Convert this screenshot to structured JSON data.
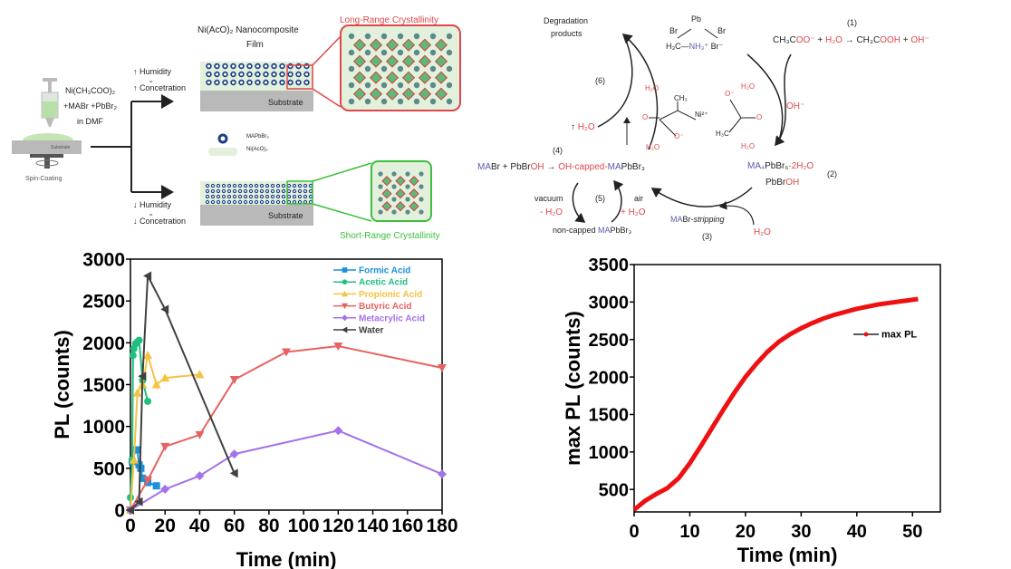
{
  "colors": {
    "red": "#e0464a",
    "blue": "#5a5aa8",
    "green": "#3cbf3c",
    "pale_green": "#e3f1dc",
    "substrate": "#b9b9b9",
    "black": "#222222"
  },
  "process_diagram": {
    "precursor": [
      "Ni(CH₃COO)₂",
      "+MABr +PbBr₂",
      "in DMF"
    ],
    "substrate_small": "Substrate",
    "spin_coating": "Spin-Coating",
    "high_condition": {
      "line1": "↑ Humidity",
      "or": "or",
      "line2": "↑ Concetration"
    },
    "low_condition": {
      "line1": "↓ Humidity",
      "or": "or",
      "line2": "↓ Concetration"
    },
    "film_title": [
      "Ni(AcO)₂ Nanocomposite",
      "Film"
    ],
    "substrate_label": "Substrate",
    "long_range": "Long-Range Crystallinity",
    "short_range": "Short-Range Crystallinity",
    "legend": {
      "crystal": "MAPbBr₃",
      "matrix": "Ni(AcO)₂"
    }
  },
  "reaction_scheme": {
    "degradation": [
      "Degradation",
      "products"
    ],
    "pb": "Pb",
    "br_left": "Br",
    "br_right": "Br",
    "ma_salt": [
      {
        "t": "H₃C—",
        "c": "black"
      },
      {
        "t": "NH₃⁺",
        "c": "blue"
      },
      {
        "t": " Br⁻",
        "c": "black"
      }
    ],
    "step1_label": "(1)",
    "step1": [
      {
        "t": "CH₃C",
        "c": "black"
      },
      {
        "t": "OO⁻",
        "c": "red"
      },
      {
        "t": " + ",
        "c": "black"
      },
      {
        "t": "H₂O",
        "c": "red"
      },
      {
        "t": " → CH₃C",
        "c": "black"
      },
      {
        "t": "OOH",
        "c": "red"
      },
      {
        "t": " + ",
        "c": "black"
      },
      {
        "t": "OH⁻",
        "c": "red"
      }
    ],
    "oh_minus": "OH⁻",
    "step6_label": "(6)",
    "up_h2o": [
      {
        "t": "↑ ",
        "c": "black"
      },
      {
        "t": "H₂O",
        "c": "red"
      }
    ],
    "complex": {
      "h2o": "H₂O",
      "ch3": "CH₃",
      "h3c": "H₃C",
      "o": "O",
      "o_minus": "O⁻",
      "ni": "Ni²⁺"
    },
    "step4_label": "(4)",
    "step4": [
      {
        "t": "MA",
        "c": "blue"
      },
      {
        "t": "Br + PbBr",
        "c": "black"
      },
      {
        "t": "OH",
        "c": "red"
      },
      {
        "t": " → ",
        "c": "black"
      },
      {
        "t": "OH-capped-",
        "c": "red"
      },
      {
        "t": "MA",
        "c": "blue"
      },
      {
        "t": "PbBr₃",
        "c": "black"
      }
    ],
    "step2_a": [
      {
        "t": "MA₄",
        "c": "blue"
      },
      {
        "t": "PbBr₆·",
        "c": "black"
      },
      {
        "t": "2H₂O",
        "c": "red"
      }
    ],
    "step2_b": [
      {
        "t": "PbBr",
        "c": "black"
      },
      {
        "t": "OH",
        "c": "red"
      }
    ],
    "step2_label": "(2)",
    "vacuum": "vacuum",
    "minus_h2o": "- H₂O",
    "step5_label": "(5)",
    "air": "air",
    "plus_h2o": "+ H₂O",
    "non_capped": [
      {
        "t": "non-capped ",
        "c": "black"
      },
      {
        "t": "MA",
        "c": "blue"
      },
      {
        "t": "PbBr₃",
        "c": "black"
      }
    ],
    "stripping": [
      {
        "t": "MA",
        "c": "blue"
      },
      {
        "t": "Br-",
        "c": "black"
      },
      {
        "t": "stripping",
        "c": "black",
        "i": true
      }
    ],
    "step3_label": "(3)",
    "h2o_bottom": "H₂O"
  },
  "chart_data": [
    {
      "type": "line",
      "xlabel": "Time (min)",
      "ylabel": "PL (counts)",
      "xlim": [
        0,
        180
      ],
      "ylim": [
        0,
        3000
      ],
      "xticks": [
        0,
        20,
        40,
        60,
        80,
        100,
        120,
        140,
        160,
        180
      ],
      "yticks": [
        0,
        500,
        1000,
        1500,
        2000,
        2500,
        3000
      ],
      "grid": false,
      "legend_position": "top-right",
      "series": [
        {
          "name": "Formic Acid",
          "color": "#1a8fdc",
          "marker": "square",
          "x": [
            0,
            1,
            3,
            4,
            5,
            6,
            7,
            10,
            15
          ],
          "y": [
            0,
            580,
            720,
            720,
            540,
            500,
            380,
            330,
            290
          ]
        },
        {
          "name": "Acetic Acid",
          "color": "#1fbf80",
          "marker": "circle",
          "x": [
            0,
            1,
            1.5,
            2,
            3,
            4,
            5,
            7,
            10
          ],
          "y": [
            150,
            600,
            1850,
            1930,
            1990,
            2010,
            2030,
            1550,
            1300
          ]
        },
        {
          "name": "Propionic Acid",
          "color": "#f5c242",
          "marker": "triangle-up",
          "x": [
            0,
            2,
            4,
            7,
            10,
            15,
            20,
            40
          ],
          "y": [
            0,
            600,
            1400,
            1500,
            1850,
            1500,
            1580,
            1620
          ]
        },
        {
          "name": "Butyric Acid",
          "color": "#e86262",
          "marker": "triangle-down",
          "x": [
            0,
            10,
            20,
            40,
            60,
            90,
            120,
            180
          ],
          "y": [
            0,
            360,
            760,
            900,
            1560,
            1890,
            1960,
            1700
          ]
        },
        {
          "name": "Metacrylic Acid",
          "color": "#a472ea",
          "marker": "diamond",
          "x": [
            0,
            20,
            40,
            60,
            120,
            180
          ],
          "y": [
            0,
            250,
            410,
            670,
            950,
            430
          ]
        },
        {
          "name": "Water",
          "color": "#404040",
          "marker": "triangle-left",
          "x": [
            0,
            5,
            7,
            10,
            20,
            60
          ],
          "y": [
            0,
            100,
            1600,
            2800,
            2400,
            440
          ]
        }
      ]
    },
    {
      "type": "line",
      "xlabel": "Time (min)",
      "ylabel": "max PL (counts)",
      "xlim": [
        0,
        55
      ],
      "ylim": [
        200,
        3500
      ],
      "xticks": [
        0,
        10,
        20,
        30,
        40,
        50
      ],
      "yticks": [
        500,
        1000,
        1500,
        2000,
        2500,
        3000,
        3500
      ],
      "grid": false,
      "legend_position": "right",
      "series": [
        {
          "name": "max PL",
          "color": "#ee1111",
          "marker": "circle",
          "x": [
            0,
            2,
            4,
            6,
            8,
            10,
            12,
            14,
            16,
            18,
            20,
            22,
            24,
            26,
            28,
            30,
            32,
            34,
            36,
            38,
            40,
            42,
            44,
            46,
            48,
            50,
            51
          ],
          "y": [
            230,
            350,
            440,
            520,
            650,
            850,
            1080,
            1320,
            1560,
            1790,
            2000,
            2180,
            2340,
            2470,
            2570,
            2650,
            2720,
            2780,
            2830,
            2870,
            2910,
            2940,
            2970,
            2990,
            3010,
            3030,
            3040
          ]
        }
      ]
    }
  ]
}
